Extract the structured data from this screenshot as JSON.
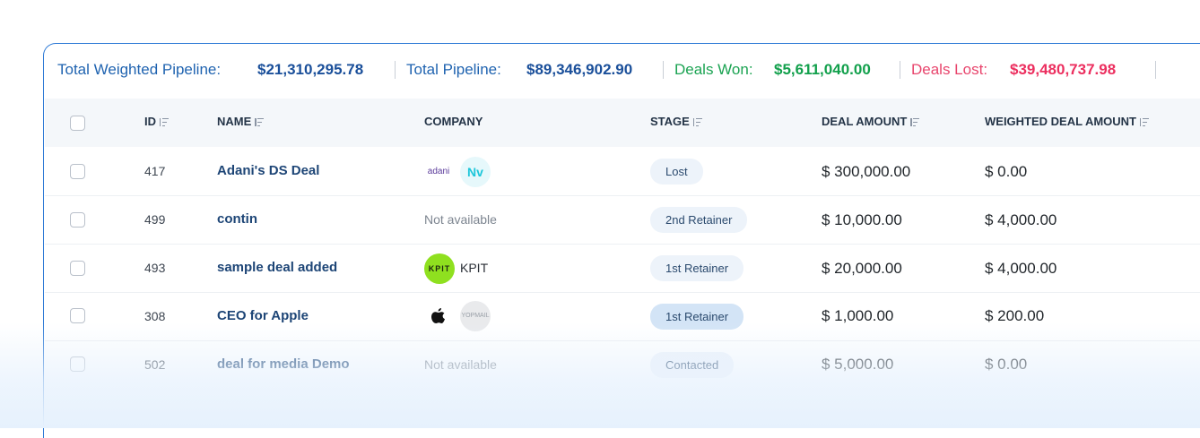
{
  "summary": [
    {
      "label": "Total Weighted Pipeline:",
      "value": "$21,310,295.78"
    },
    {
      "label": "Total Pipeline:",
      "value": "$89,346,902.90"
    },
    {
      "label": "Deals Won:",
      "value": "$5,611,040.00"
    },
    {
      "label": "Deals Lost:",
      "value": "$39,480,737.98"
    }
  ],
  "table": {
    "headers": [
      "ID",
      "NAME",
      "COMPANY",
      "STAGE",
      "DEAL AMOUNT",
      "WEIGHTED DEAL AMOUNT"
    ],
    "rows": [
      {
        "id": "417",
        "name": "Adani's DS Deal",
        "company": [
          "adani",
          "Nv"
        ],
        "stage": "Lost",
        "deal_amount": "$ 300,000.00",
        "weighted_amount": "$ 0.00"
      },
      {
        "id": "499",
        "name": "contin",
        "company": [
          "Not available"
        ],
        "stage": "2nd Retainer",
        "deal_amount": "$ 10,000.00",
        "weighted_amount": "$ 4,000.00"
      },
      {
        "id": "493",
        "name": "sample deal added",
        "company": [
          "KPIT",
          "KPIT"
        ],
        "stage": "1st Retainer",
        "deal_amount": "$ 20,000.00",
        "weighted_amount": "$ 4,000.00"
      },
      {
        "id": "308",
        "name": "CEO for Apple",
        "company": [
          "YOPMAIL"
        ],
        "stage": "1st Retainer",
        "deal_amount": "$ 1,000.00",
        "weighted_amount": "$ 200.00"
      },
      {
        "id": "502",
        "name": "deal for media Demo",
        "company": [
          "Not available"
        ],
        "stage": "Contacted",
        "deal_amount": "$ 5,000.00",
        "weighted_amount": "$ 0.00"
      }
    ]
  }
}
